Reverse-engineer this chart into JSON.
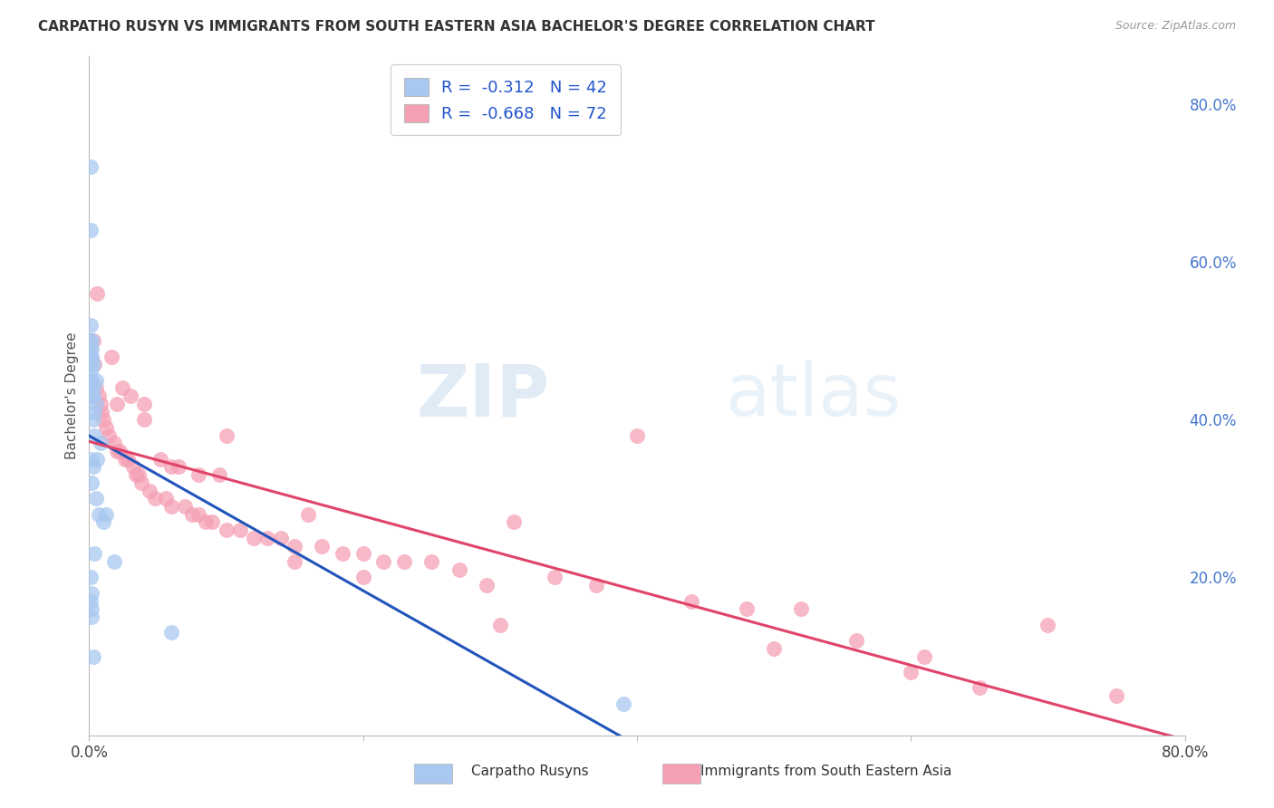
{
  "title": "CARPATHO RUSYN VS IMMIGRANTS FROM SOUTH EASTERN ASIA BACHELOR'S DEGREE CORRELATION CHART",
  "source": "Source: ZipAtlas.com",
  "ylabel": "Bachelor's Degree",
  "legend_r_blue": "R =  -0.312",
  "legend_n_blue": "N = 42",
  "legend_r_pink": "R =  -0.668",
  "legend_n_pink": "N = 72",
  "legend_label_blue": "Carpatho Rusyns",
  "legend_label_pink": "Immigrants from South Eastern Asia",
  "color_blue": "#A8C8F0",
  "color_pink": "#F5A0B5",
  "color_line_blue": "#2255BB",
  "color_line_pink": "#E04468",
  "color_legend_text": "#2255CC",
  "watermark_zip": "ZIP",
  "watermark_atlas": "atlas",
  "blue_x": [
    0.001,
    0.001,
    0.001,
    0.001,
    0.001,
    0.001,
    0.001,
    0.001,
    0.001,
    0.001,
    0.001,
    0.001,
    0.002,
    0.002,
    0.002,
    0.002,
    0.002,
    0.002,
    0.002,
    0.002,
    0.002,
    0.003,
    0.003,
    0.003,
    0.003,
    0.003,
    0.004,
    0.004,
    0.004,
    0.005,
    0.005,
    0.005,
    0.006,
    0.007,
    0.008,
    0.01,
    0.012,
    0.018,
    0.06,
    0.39,
    0.002,
    0.003
  ],
  "blue_y": [
    0.72,
    0.64,
    0.52,
    0.5,
    0.49,
    0.48,
    0.47,
    0.46,
    0.45,
    0.44,
    0.2,
    0.17,
    0.5,
    0.49,
    0.48,
    0.45,
    0.43,
    0.35,
    0.32,
    0.18,
    0.15,
    0.47,
    0.44,
    0.43,
    0.4,
    0.34,
    0.41,
    0.38,
    0.23,
    0.45,
    0.42,
    0.3,
    0.35,
    0.28,
    0.37,
    0.27,
    0.28,
    0.22,
    0.13,
    0.04,
    0.16,
    0.1
  ],
  "pink_x": [
    0.003,
    0.004,
    0.005,
    0.006,
    0.007,
    0.008,
    0.009,
    0.01,
    0.012,
    0.014,
    0.016,
    0.018,
    0.02,
    0.022,
    0.024,
    0.026,
    0.028,
    0.03,
    0.032,
    0.034,
    0.036,
    0.038,
    0.04,
    0.044,
    0.048,
    0.052,
    0.056,
    0.06,
    0.065,
    0.07,
    0.075,
    0.08,
    0.085,
    0.09,
    0.095,
    0.1,
    0.11,
    0.12,
    0.13,
    0.14,
    0.15,
    0.16,
    0.17,
    0.185,
    0.2,
    0.215,
    0.23,
    0.25,
    0.27,
    0.29,
    0.31,
    0.34,
    0.37,
    0.4,
    0.44,
    0.48,
    0.52,
    0.56,
    0.61,
    0.65,
    0.02,
    0.04,
    0.06,
    0.08,
    0.1,
    0.15,
    0.2,
    0.3,
    0.5,
    0.6,
    0.7,
    0.75
  ],
  "pink_y": [
    0.5,
    0.47,
    0.44,
    0.56,
    0.43,
    0.42,
    0.41,
    0.4,
    0.39,
    0.38,
    0.48,
    0.37,
    0.42,
    0.36,
    0.44,
    0.35,
    0.35,
    0.43,
    0.34,
    0.33,
    0.33,
    0.32,
    0.42,
    0.31,
    0.3,
    0.35,
    0.3,
    0.29,
    0.34,
    0.29,
    0.28,
    0.28,
    0.27,
    0.27,
    0.33,
    0.26,
    0.26,
    0.25,
    0.25,
    0.25,
    0.24,
    0.28,
    0.24,
    0.23,
    0.23,
    0.22,
    0.22,
    0.22,
    0.21,
    0.19,
    0.27,
    0.2,
    0.19,
    0.38,
    0.17,
    0.16,
    0.16,
    0.12,
    0.1,
    0.06,
    0.36,
    0.4,
    0.34,
    0.33,
    0.38,
    0.22,
    0.2,
    0.14,
    0.11,
    0.08,
    0.14,
    0.05
  ],
  "xlim": [
    0.0,
    0.8
  ],
  "ylim": [
    0.0,
    0.86
  ],
  "ytick_vals": [
    0.2,
    0.4,
    0.6,
    0.8
  ],
  "ytick_labels": [
    "20.0%",
    "40.0%",
    "60.0%",
    "80.0%"
  ],
  "xtick_vals": [
    0.0,
    0.2,
    0.4,
    0.6,
    0.8
  ],
  "xtick_labels": [
    "0.0%",
    "",
    "",
    "",
    "80.0%"
  ],
  "background_color": "#FFFFFF",
  "grid_color": "#CCCCCC"
}
